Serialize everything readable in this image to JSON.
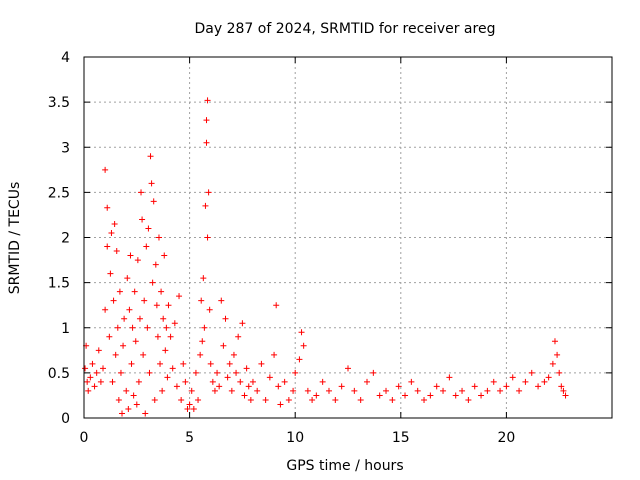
{
  "chart_data": {
    "type": "scatter",
    "title": "Day 287 of 2024, SRMTID for receiver areg",
    "xlabel": "GPS time / hours",
    "ylabel": "SRMTID / TECUs",
    "xlim": [
      0,
      25
    ],
    "ylim": [
      0,
      4
    ],
    "xticks": [
      0,
      5,
      10,
      15,
      20
    ],
    "yticks": [
      0,
      0.5,
      1,
      1.5,
      2,
      2.5,
      3,
      3.5,
      4
    ],
    "xtick_labels": [
      "0",
      "5",
      "10",
      "15",
      "20"
    ],
    "ytick_labels": [
      "0",
      "0.5",
      "1",
      "1.5",
      "2",
      "2.5",
      "3",
      "3.5",
      "4"
    ],
    "grid": true,
    "marker": "+",
    "color": "#ff0000",
    "series": [
      {
        "name": "SRMTID",
        "points": [
          [
            0.05,
            0.55
          ],
          [
            0.1,
            0.8
          ],
          [
            0.15,
            0.4
          ],
          [
            0.2,
            0.3
          ],
          [
            0.3,
            0.45
          ],
          [
            0.4,
            0.6
          ],
          [
            0.5,
            0.35
          ],
          [
            0.6,
            0.5
          ],
          [
            0.7,
            0.75
          ],
          [
            0.8,
            0.4
          ],
          [
            0.9,
            0.55
          ],
          [
            1.0,
            1.2
          ],
          [
            1.0,
            2.75
          ],
          [
            1.1,
            1.9
          ],
          [
            1.1,
            2.33
          ],
          [
            1.2,
            0.9
          ],
          [
            1.25,
            1.6
          ],
          [
            1.3,
            2.05
          ],
          [
            1.35,
            0.4
          ],
          [
            1.4,
            1.3
          ],
          [
            1.45,
            2.15
          ],
          [
            1.5,
            0.7
          ],
          [
            1.55,
            1.85
          ],
          [
            1.6,
            1.0
          ],
          [
            1.65,
            0.2
          ],
          [
            1.7,
            1.4
          ],
          [
            1.75,
            0.5
          ],
          [
            1.8,
            0.05
          ],
          [
            1.85,
            0.8
          ],
          [
            1.9,
            1.1
          ],
          [
            2.0,
            0.3
          ],
          [
            2.05,
            1.55
          ],
          [
            2.1,
            0.1
          ],
          [
            2.15,
            1.2
          ],
          [
            2.2,
            1.8
          ],
          [
            2.25,
            0.6
          ],
          [
            2.3,
            1.0
          ],
          [
            2.35,
            0.25
          ],
          [
            2.4,
            1.4
          ],
          [
            2.45,
            0.85
          ],
          [
            2.5,
            0.15
          ],
          [
            2.55,
            1.75
          ],
          [
            2.6,
            0.4
          ],
          [
            2.65,
            1.1
          ],
          [
            2.7,
            2.5
          ],
          [
            2.75,
            2.2
          ],
          [
            2.8,
            0.7
          ],
          [
            2.85,
            1.3
          ],
          [
            2.9,
            0.05
          ],
          [
            2.95,
            1.9
          ],
          [
            3.0,
            1.0
          ],
          [
            3.05,
            2.1
          ],
          [
            3.1,
            0.5
          ],
          [
            3.15,
            2.9
          ],
          [
            3.2,
            2.6
          ],
          [
            3.25,
            1.5
          ],
          [
            3.3,
            2.4
          ],
          [
            3.35,
            0.2
          ],
          [
            3.4,
            1.7
          ],
          [
            3.45,
            1.25
          ],
          [
            3.5,
            0.9
          ],
          [
            3.55,
            2.0
          ],
          [
            3.6,
            0.6
          ],
          [
            3.65,
            1.4
          ],
          [
            3.7,
            0.3
          ],
          [
            3.75,
            1.1
          ],
          [
            3.8,
            1.8
          ],
          [
            3.85,
            0.75
          ],
          [
            3.9,
            1.0
          ],
          [
            3.95,
            0.45
          ],
          [
            4.0,
            1.25
          ],
          [
            4.1,
            0.9
          ],
          [
            4.2,
            0.55
          ],
          [
            4.3,
            1.05
          ],
          [
            4.4,
            0.35
          ],
          [
            4.5,
            1.35
          ],
          [
            4.6,
            0.2
          ],
          [
            4.7,
            0.6
          ],
          [
            4.8,
            0.4
          ],
          [
            4.9,
            0.1
          ],
          [
            5.0,
            0.15
          ],
          [
            5.1,
            0.3
          ],
          [
            5.2,
            0.1
          ],
          [
            5.3,
            0.5
          ],
          [
            5.4,
            0.2
          ],
          [
            5.5,
            0.7
          ],
          [
            5.55,
            1.3
          ],
          [
            5.6,
            0.85
          ],
          [
            5.65,
            1.55
          ],
          [
            5.7,
            1.0
          ],
          [
            5.75,
            2.35
          ],
          [
            5.8,
            3.05
          ],
          [
            5.8,
            3.3
          ],
          [
            5.85,
            2.0
          ],
          [
            5.85,
            3.52
          ],
          [
            5.9,
            2.5
          ],
          [
            5.95,
            1.2
          ],
          [
            6.0,
            0.6
          ],
          [
            6.1,
            0.4
          ],
          [
            6.2,
            0.3
          ],
          [
            6.3,
            0.5
          ],
          [
            6.4,
            0.35
          ],
          [
            6.5,
            1.3
          ],
          [
            6.6,
            0.8
          ],
          [
            6.7,
            1.1
          ],
          [
            6.8,
            0.45
          ],
          [
            6.9,
            0.6
          ],
          [
            7.0,
            0.3
          ],
          [
            7.1,
            0.7
          ],
          [
            7.2,
            0.5
          ],
          [
            7.3,
            0.9
          ],
          [
            7.4,
            0.4
          ],
          [
            7.5,
            1.05
          ],
          [
            7.6,
            0.25
          ],
          [
            7.7,
            0.55
          ],
          [
            7.8,
            0.35
          ],
          [
            7.9,
            0.2
          ],
          [
            8.0,
            0.4
          ],
          [
            8.2,
            0.3
          ],
          [
            8.4,
            0.6
          ],
          [
            8.6,
            0.2
          ],
          [
            8.8,
            0.45
          ],
          [
            9.0,
            0.7
          ],
          [
            9.1,
            1.25
          ],
          [
            9.2,
            0.35
          ],
          [
            9.3,
            0.15
          ],
          [
            9.5,
            0.4
          ],
          [
            9.7,
            0.2
          ],
          [
            9.9,
            0.3
          ],
          [
            10.0,
            0.5
          ],
          [
            10.2,
            0.65
          ],
          [
            10.3,
            0.95
          ],
          [
            10.4,
            0.8
          ],
          [
            10.6,
            0.3
          ],
          [
            10.8,
            0.2
          ],
          [
            11.0,
            0.25
          ],
          [
            11.3,
            0.4
          ],
          [
            11.6,
            0.3
          ],
          [
            11.9,
            0.2
          ],
          [
            12.2,
            0.35
          ],
          [
            12.5,
            0.55
          ],
          [
            12.8,
            0.3
          ],
          [
            13.1,
            0.2
          ],
          [
            13.4,
            0.4
          ],
          [
            13.7,
            0.5
          ],
          [
            14.0,
            0.25
          ],
          [
            14.3,
            0.3
          ],
          [
            14.6,
            0.2
          ],
          [
            14.9,
            0.35
          ],
          [
            15.2,
            0.25
          ],
          [
            15.5,
            0.4
          ],
          [
            15.8,
            0.3
          ],
          [
            16.1,
            0.2
          ],
          [
            16.4,
            0.25
          ],
          [
            16.7,
            0.35
          ],
          [
            17.0,
            0.3
          ],
          [
            17.3,
            0.45
          ],
          [
            17.6,
            0.25
          ],
          [
            17.9,
            0.3
          ],
          [
            18.2,
            0.2
          ],
          [
            18.5,
            0.35
          ],
          [
            18.8,
            0.25
          ],
          [
            19.1,
            0.3
          ],
          [
            19.4,
            0.4
          ],
          [
            19.7,
            0.3
          ],
          [
            20.0,
            0.35
          ],
          [
            20.3,
            0.45
          ],
          [
            20.6,
            0.3
          ],
          [
            20.9,
            0.4
          ],
          [
            21.2,
            0.5
          ],
          [
            21.5,
            0.35
          ],
          [
            21.8,
            0.4
          ],
          [
            22.0,
            0.45
          ],
          [
            22.2,
            0.6
          ],
          [
            22.3,
            0.85
          ],
          [
            22.4,
            0.7
          ],
          [
            22.5,
            0.5
          ],
          [
            22.6,
            0.35
          ],
          [
            22.7,
            0.3
          ],
          [
            22.8,
            0.25
          ]
        ]
      }
    ]
  }
}
